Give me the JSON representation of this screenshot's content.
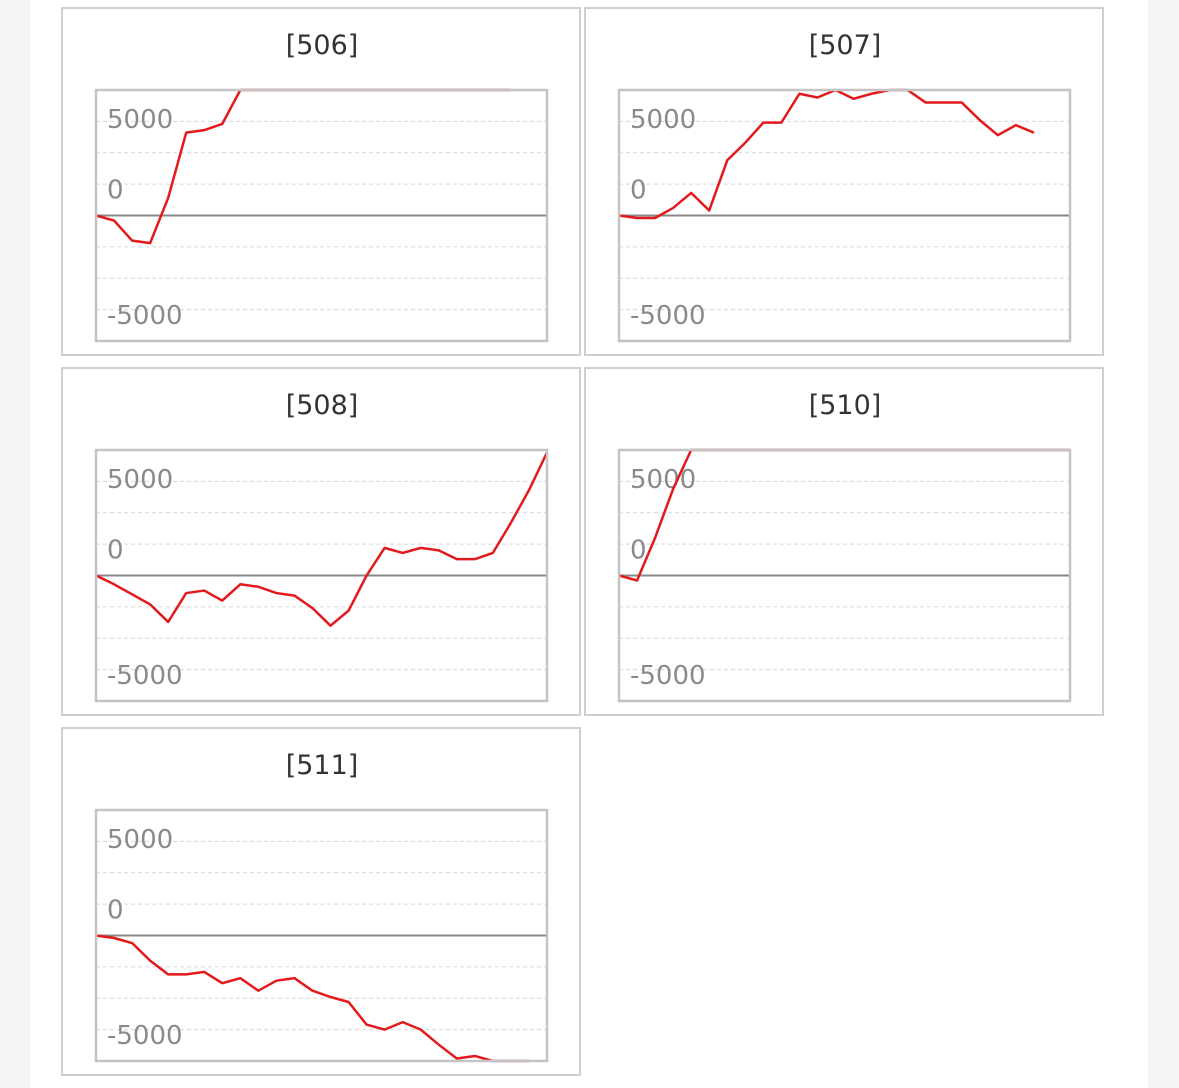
{
  "chart_data": [
    {
      "type": "line",
      "title": "[506]",
      "color": "#e3191c",
      "ylim": [
        -5000,
        5000
      ],
      "yticks": [
        -5000,
        0,
        5000
      ],
      "grid": true,
      "values": [
        0,
        -200,
        -1000,
        -1100,
        700,
        3300,
        3400,
        3650,
        5000,
        5000,
        5000,
        5000,
        5000,
        5000,
        5000,
        5000,
        5000,
        5000,
        5000,
        5000,
        5000,
        5000,
        5000,
        5000
      ]
    },
    {
      "type": "line",
      "title": "[507]",
      "color": "#e3191c",
      "ylim": [
        -5000,
        5000
      ],
      "yticks": [
        -5000,
        0,
        5000
      ],
      "grid": true,
      "values": [
        0,
        -100,
        -100,
        300,
        900,
        200,
        2200,
        2900,
        3700,
        3700,
        4850,
        4700,
        5000,
        4650,
        4850,
        5000,
        5000,
        4500,
        4500,
        4500,
        3800,
        3200,
        3600,
        3300
      ]
    },
    {
      "type": "line",
      "title": "[508]",
      "color": "#e3191c",
      "ylim": [
        -5000,
        5000
      ],
      "yticks": [
        -5000,
        0,
        5000
      ],
      "grid": true,
      "values": [
        0,
        -350,
        -750,
        -1150,
        -1850,
        -700,
        -600,
        -1000,
        -350,
        -450,
        -700,
        -800,
        -1300,
        -2000,
        -1400,
        0,
        1100,
        900,
        1100,
        1000,
        650,
        650,
        900,
        2100,
        3400,
        4900
      ]
    },
    {
      "type": "line",
      "title": "[510]",
      "color": "#e3191c",
      "ylim": [
        -5000,
        5000
      ],
      "yticks": [
        -5000,
        0,
        5000
      ],
      "grid": true,
      "values": [
        0,
        -200,
        1500,
        3450,
        5000,
        5000,
        5000,
        5000,
        5000,
        5000,
        5000,
        5000,
        5000,
        5000,
        5000,
        5000,
        5000,
        5000,
        5000,
        5000,
        5000,
        5000,
        5000,
        5000,
        5000,
        5000
      ]
    },
    {
      "type": "line",
      "title": "[511]",
      "color": "#e3191c",
      "ylim": [
        -5000,
        5000
      ],
      "yticks": [
        -5000,
        0,
        5000
      ],
      "grid": true,
      "values": [
        0,
        -100,
        -300,
        -1000,
        -1550,
        -1550,
        -1450,
        -1900,
        -1700,
        -2200,
        -1800,
        -1700,
        -2200,
        -2450,
        -2650,
        -3550,
        -3750,
        -3450,
        -3750,
        -4350,
        -4900,
        -4800,
        -5000,
        -5000,
        -5000
      ]
    }
  ]
}
